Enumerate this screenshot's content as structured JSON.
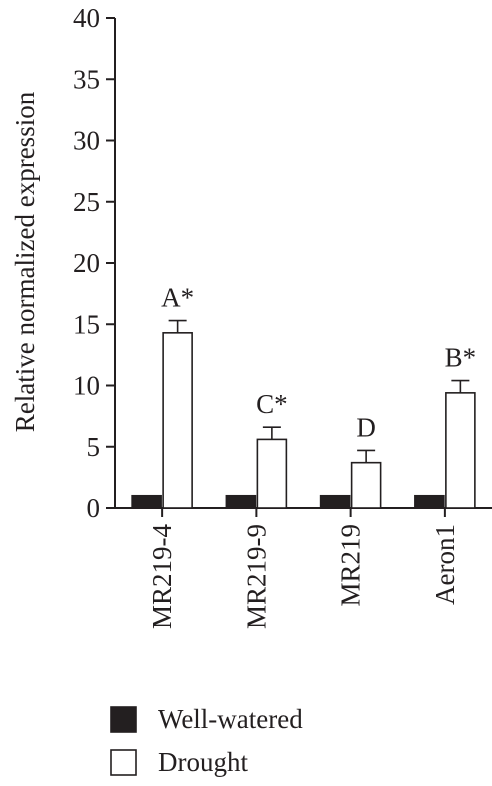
{
  "chart_data": {
    "type": "bar",
    "ylabel": "Relative normalized expression",
    "xlabel": "",
    "ylim": [
      0,
      40
    ],
    "yticks": [
      0,
      5,
      10,
      15,
      20,
      25,
      30,
      35,
      40
    ],
    "categories": [
      "MR219-4",
      "MR219-9",
      "MR219",
      "Aeron1"
    ],
    "series": [
      {
        "name": "Well-watered",
        "values": [
          1,
          1,
          1,
          1
        ],
        "errors": [
          0,
          0,
          0,
          0
        ],
        "color": "#231f20"
      },
      {
        "name": "Drought",
        "values": [
          14.3,
          5.6,
          3.7,
          9.4
        ],
        "errors": [
          1.0,
          1.0,
          1.0,
          1.0
        ],
        "color": "#ffffff"
      }
    ],
    "annotations": [
      "A*",
      "C*",
      "D",
      "B*"
    ],
    "legend_position": "bottom-left",
    "grid": false
  }
}
